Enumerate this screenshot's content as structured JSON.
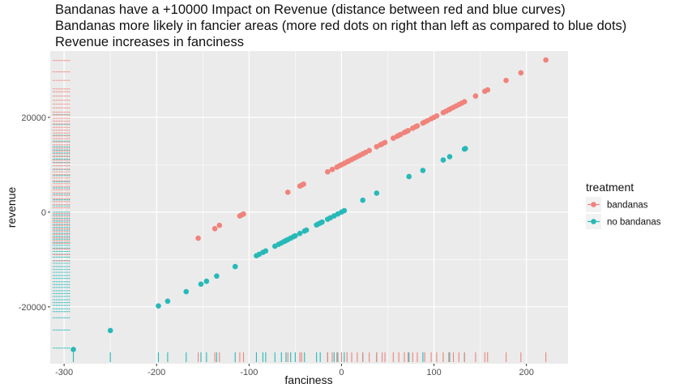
{
  "chart_data": {
    "type": "scatter",
    "title_lines": [
      "Bandanas have a +10000 Impact on Revenue (distance between red and blue curves)",
      "Bandanas more likely in fancier areas (more red dots on right than left as compared to blue dots)",
      "Revenue increases in fanciness"
    ],
    "xlabel": "fanciness",
    "ylabel": "revenue",
    "xlim": [
      -315,
      245
    ],
    "ylim": [
      -32000,
      34000
    ],
    "x_ticks": [
      -300,
      -200,
      -100,
      0,
      100,
      200
    ],
    "y_ticks": [
      -20000,
      0,
      20000
    ],
    "x_tick_labels": [
      "-300",
      "-200",
      "-100",
      "0",
      "100",
      "200"
    ],
    "y_tick_labels": [
      "-20000",
      "0",
      "20000"
    ],
    "grid": true,
    "rug": true,
    "legend": {
      "title": "treatment",
      "position": "right",
      "entries": [
        "bandanas",
        "no bandanas"
      ]
    },
    "colors": {
      "bandanas": "#F0837B",
      "no_bandanas": "#27B9B8",
      "panel_bg": "#EBEBEB",
      "grid": "#FFFFFF"
    },
    "series": [
      {
        "name": "bandanas",
        "x": [
          -155,
          -137,
          -132,
          -110,
          -108,
          -106,
          -58,
          -45,
          -43,
          -41,
          -15,
          -10,
          -5,
          -2,
          0,
          3,
          6,
          8,
          11,
          14,
          17,
          20,
          23,
          26,
          30,
          38,
          42,
          44,
          47,
          56,
          60,
          62,
          64,
          68,
          70,
          72,
          77,
          80,
          82,
          88,
          90,
          93,
          97,
          100,
          103,
          110,
          113,
          116,
          118,
          121,
          124,
          127,
          130,
          133,
          145,
          155,
          158,
          178,
          194,
          221
        ],
        "y": [
          -5500,
          -3500,
          -2800,
          -800,
          -600,
          -400,
          4200,
          5500,
          5700,
          5900,
          8500,
          9000,
          9500,
          9800,
          10000,
          10300,
          10600,
          10800,
          11100,
          11400,
          11700,
          12000,
          12300,
          12600,
          13000,
          13800,
          14200,
          14400,
          14700,
          15600,
          16000,
          16200,
          16400,
          16800,
          17000,
          17200,
          17700,
          18000,
          18200,
          18800,
          19000,
          19300,
          19700,
          20000,
          20300,
          21000,
          21300,
          21600,
          21800,
          22100,
          22400,
          22700,
          23000,
          23300,
          24500,
          25500,
          25800,
          27800,
          29400,
          32100
        ]
      },
      {
        "name": "no bandanas",
        "x": [
          -290,
          -250,
          -198,
          -188,
          -168,
          -152,
          -146,
          -135,
          -115,
          -92,
          -89,
          -85,
          -82,
          -72,
          -68,
          -65,
          -62,
          -60,
          -58,
          -55,
          -52,
          -50,
          -45,
          -40,
          -38,
          -27,
          -25,
          -23,
          -21,
          -15,
          -12,
          -8,
          -4,
          0,
          3,
          23,
          38,
          73,
          88,
          110,
          117,
          133,
          134
        ],
        "y": [
          -29000,
          -25000,
          -19800,
          -18800,
          -16800,
          -15200,
          -14600,
          -13500,
          -11500,
          -9200,
          -8900,
          -8500,
          -8200,
          -7200,
          -6800,
          -6500,
          -6200,
          -6000,
          -5800,
          -5500,
          -5200,
          -5000,
          -4500,
          -4000,
          -3800,
          -2700,
          -2500,
          -2300,
          -2100,
          -1500,
          -1200,
          -800,
          -400,
          0,
          300,
          2500,
          4000,
          7500,
          8800,
          11000,
          11700,
          13300,
          13400
        ]
      }
    ],
    "rug_y": {
      "bandanas": [
        32000,
        29600,
        27800,
        26000,
        25400,
        24500,
        23600,
        22800,
        22000,
        21100,
        20500,
        19800,
        19200,
        18600,
        17900,
        17300,
        16700,
        16100,
        15500,
        14800,
        14200,
        13500,
        12900,
        12300,
        11700,
        11000,
        10400,
        9800,
        9100,
        8500,
        7900,
        7200,
        6600,
        6000,
        5400,
        4700,
        4100,
        3500,
        2800,
        2200,
        1600,
        900,
        -300,
        -900,
        -1600,
        -2200,
        -2800,
        -3500,
        -4100,
        -4700,
        -5400,
        -6000,
        -6600,
        -7800,
        -9000,
        -10300
      ],
      "no_bandanas": [
        20600,
        18500,
        16200,
        15000,
        13800,
        13100,
        12500,
        11800,
        11200,
        10500,
        9800,
        9000,
        7700,
        6400,
        5100,
        3800,
        2600,
        1300,
        0,
        -600,
        -1300,
        -1900,
        -2600,
        -3200,
        -3800,
        -4500,
        -5100,
        -5700,
        -6400,
        -7000,
        -7600,
        -8300,
        -8900,
        -9500,
        -10200,
        -10800,
        -11500,
        -12100,
        -12700,
        -13400,
        -14000,
        -14700,
        -15300,
        -15900,
        -16600,
        -17200,
        -17800,
        -18500,
        -19100,
        -19700,
        -20400,
        -21000,
        -22300,
        -24900,
        -28700
      ]
    },
    "rug_x": {
      "bandanas": [
        -155,
        -137,
        -132,
        -110,
        -106,
        -58,
        -45,
        -43,
        -15,
        -10,
        -5,
        0,
        6,
        11,
        17,
        23,
        30,
        38,
        44,
        47,
        56,
        62,
        68,
        72,
        77,
        82,
        90,
        97,
        103,
        110,
        116,
        121,
        127,
        133,
        145,
        155,
        158,
        178,
        194,
        221
      ],
      "no_bandanas": [
        -290,
        -250,
        -198,
        -188,
        -168,
        -152,
        -146,
        -135,
        -115,
        -92,
        -85,
        -82,
        -72,
        -65,
        -60,
        -55,
        -50,
        -45,
        -40,
        -27,
        -23,
        -15,
        -8,
        -4,
        3,
        23,
        38,
        73,
        88,
        110,
        117,
        133
      ]
    }
  }
}
